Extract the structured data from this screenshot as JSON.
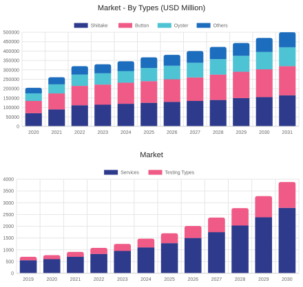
{
  "chart_data": [
    {
      "type": "bar",
      "stacked": true,
      "title": "Market - By Types (USD Million)",
      "categories": [
        "2020",
        "2021",
        "2022",
        "2023",
        "2024",
        "2025",
        "2026",
        "2027",
        "2028",
        "2029",
        "2030",
        "2031"
      ],
      "series": [
        {
          "name": "Shiitake",
          "color": "#2e3a8c",
          "values": [
            70000,
            90000,
            112000,
            115000,
            120000,
            125000,
            130000,
            135000,
            140000,
            150000,
            155000,
            165000
          ]
        },
        {
          "name": "Button",
          "color": "#ef5a86",
          "values": [
            65000,
            85000,
            103000,
            107000,
            112000,
            115000,
            120000,
            125000,
            135000,
            140000,
            148000,
            155000
          ]
        },
        {
          "name": "Oyster",
          "color": "#4dc3d4",
          "values": [
            40000,
            48000,
            60000,
            60000,
            62000,
            70000,
            72000,
            78000,
            82000,
            85000,
            92000,
            100000
          ]
        },
        {
          "name": "Others",
          "color": "#1c6dbd",
          "values": [
            30000,
            38000,
            45000,
            48000,
            52000,
            57000,
            58000,
            62000,
            65000,
            68000,
            75000,
            80000
          ]
        }
      ],
      "ylim": [
        0,
        500000
      ],
      "yticks": [
        0,
        50000,
        100000,
        150000,
        200000,
        250000,
        300000,
        350000,
        400000,
        450000,
        500000
      ],
      "legend_position": "top",
      "grid": true
    },
    {
      "type": "bar",
      "stacked": true,
      "title": "Market",
      "categories": [
        "2019",
        "2020",
        "2021",
        "2022",
        "2023",
        "2024",
        "2025",
        "2026",
        "2027",
        "2028",
        "2029",
        "2030"
      ],
      "series": [
        {
          "name": "Services",
          "color": "#2e3a8c",
          "values": [
            550,
            600,
            700,
            820,
            950,
            1100,
            1280,
            1500,
            1750,
            2030,
            2380,
            2780
          ]
        },
        {
          "name": "Testing Types",
          "color": "#ef5a86",
          "values": [
            150,
            170,
            210,
            260,
            300,
            370,
            420,
            510,
            620,
            740,
            900,
            1100
          ]
        }
      ],
      "ylim": [
        0,
        4000
      ],
      "yticks": [
        0,
        500,
        1000,
        1500,
        2000,
        2500,
        3000,
        3500,
        4000
      ],
      "legend_position": "top",
      "grid": true
    }
  ]
}
